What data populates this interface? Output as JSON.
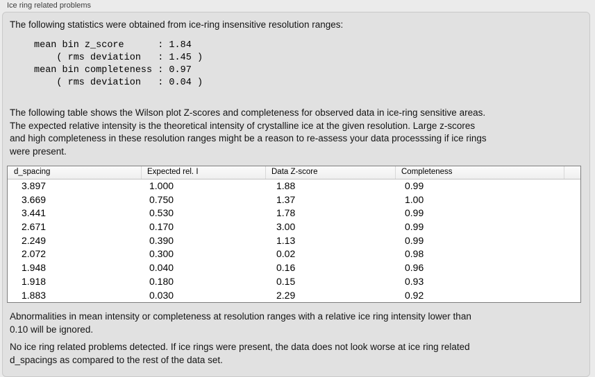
{
  "panel": {
    "title": "Ice ring related problems"
  },
  "sections": {
    "intro": "The following statistics were obtained from ice-ring insensitive resolution ranges:",
    "stats_block": "mean bin z_score      : 1.84\n    ( rms deviation   : 1.45 )\nmean bin completeness : 0.97\n    ( rms deviation   : 0.04 )",
    "description": "The following table shows the Wilson plot Z-scores and completeness for observed data in ice-ring sensitive areas.\nThe expected relative intensity is the theoretical intensity of crystalline ice at the given resolution. Large z-scores\nand high completeness in these resolution ranges might be a reason to re-assess your data processsing if ice rings\nwere present.",
    "ignore_note": "Abnormalities in mean intensity or completeness at resolution ranges with a relative ice ring intensity lower than\n0.10 will be ignored.",
    "conclusion": "No ice ring related problems detected. If ice rings were present, the data does not look worse at ice ring related\nd_spacings as compared to the rest of the data set."
  },
  "stats": {
    "mean_bin_z_score": "1.84",
    "z_score_rms_deviation": "1.45",
    "mean_bin_completeness": "0.97",
    "completeness_rms_deviation": "0.04"
  },
  "table": {
    "columns": [
      "d_spacing",
      "Expected rel. I",
      "Data Z-score",
      "Completeness"
    ],
    "rows": [
      [
        "3.897",
        "1.000",
        "1.88",
        "0.99"
      ],
      [
        "3.669",
        "0.750",
        "1.37",
        "1.00"
      ],
      [
        "3.441",
        "0.530",
        "1.78",
        "0.99"
      ],
      [
        "2.671",
        "0.170",
        "3.00",
        "0.99"
      ],
      [
        "2.249",
        "0.390",
        "1.13",
        "0.99"
      ],
      [
        "2.072",
        "0.300",
        "0.02",
        "0.98"
      ],
      [
        "1.948",
        "0.040",
        "0.16",
        "0.96"
      ],
      [
        "1.918",
        "0.180",
        "0.15",
        "0.93"
      ],
      [
        "1.883",
        "0.030",
        "2.29",
        "0.92"
      ]
    ]
  },
  "colors": {
    "background": "#ebebeb",
    "panel_background": "#e1e1e1",
    "panel_border": "#c9c9c9",
    "table_border": "#7e7e7e",
    "table_header_background": "#f5f5f5",
    "text": "#141414"
  }
}
